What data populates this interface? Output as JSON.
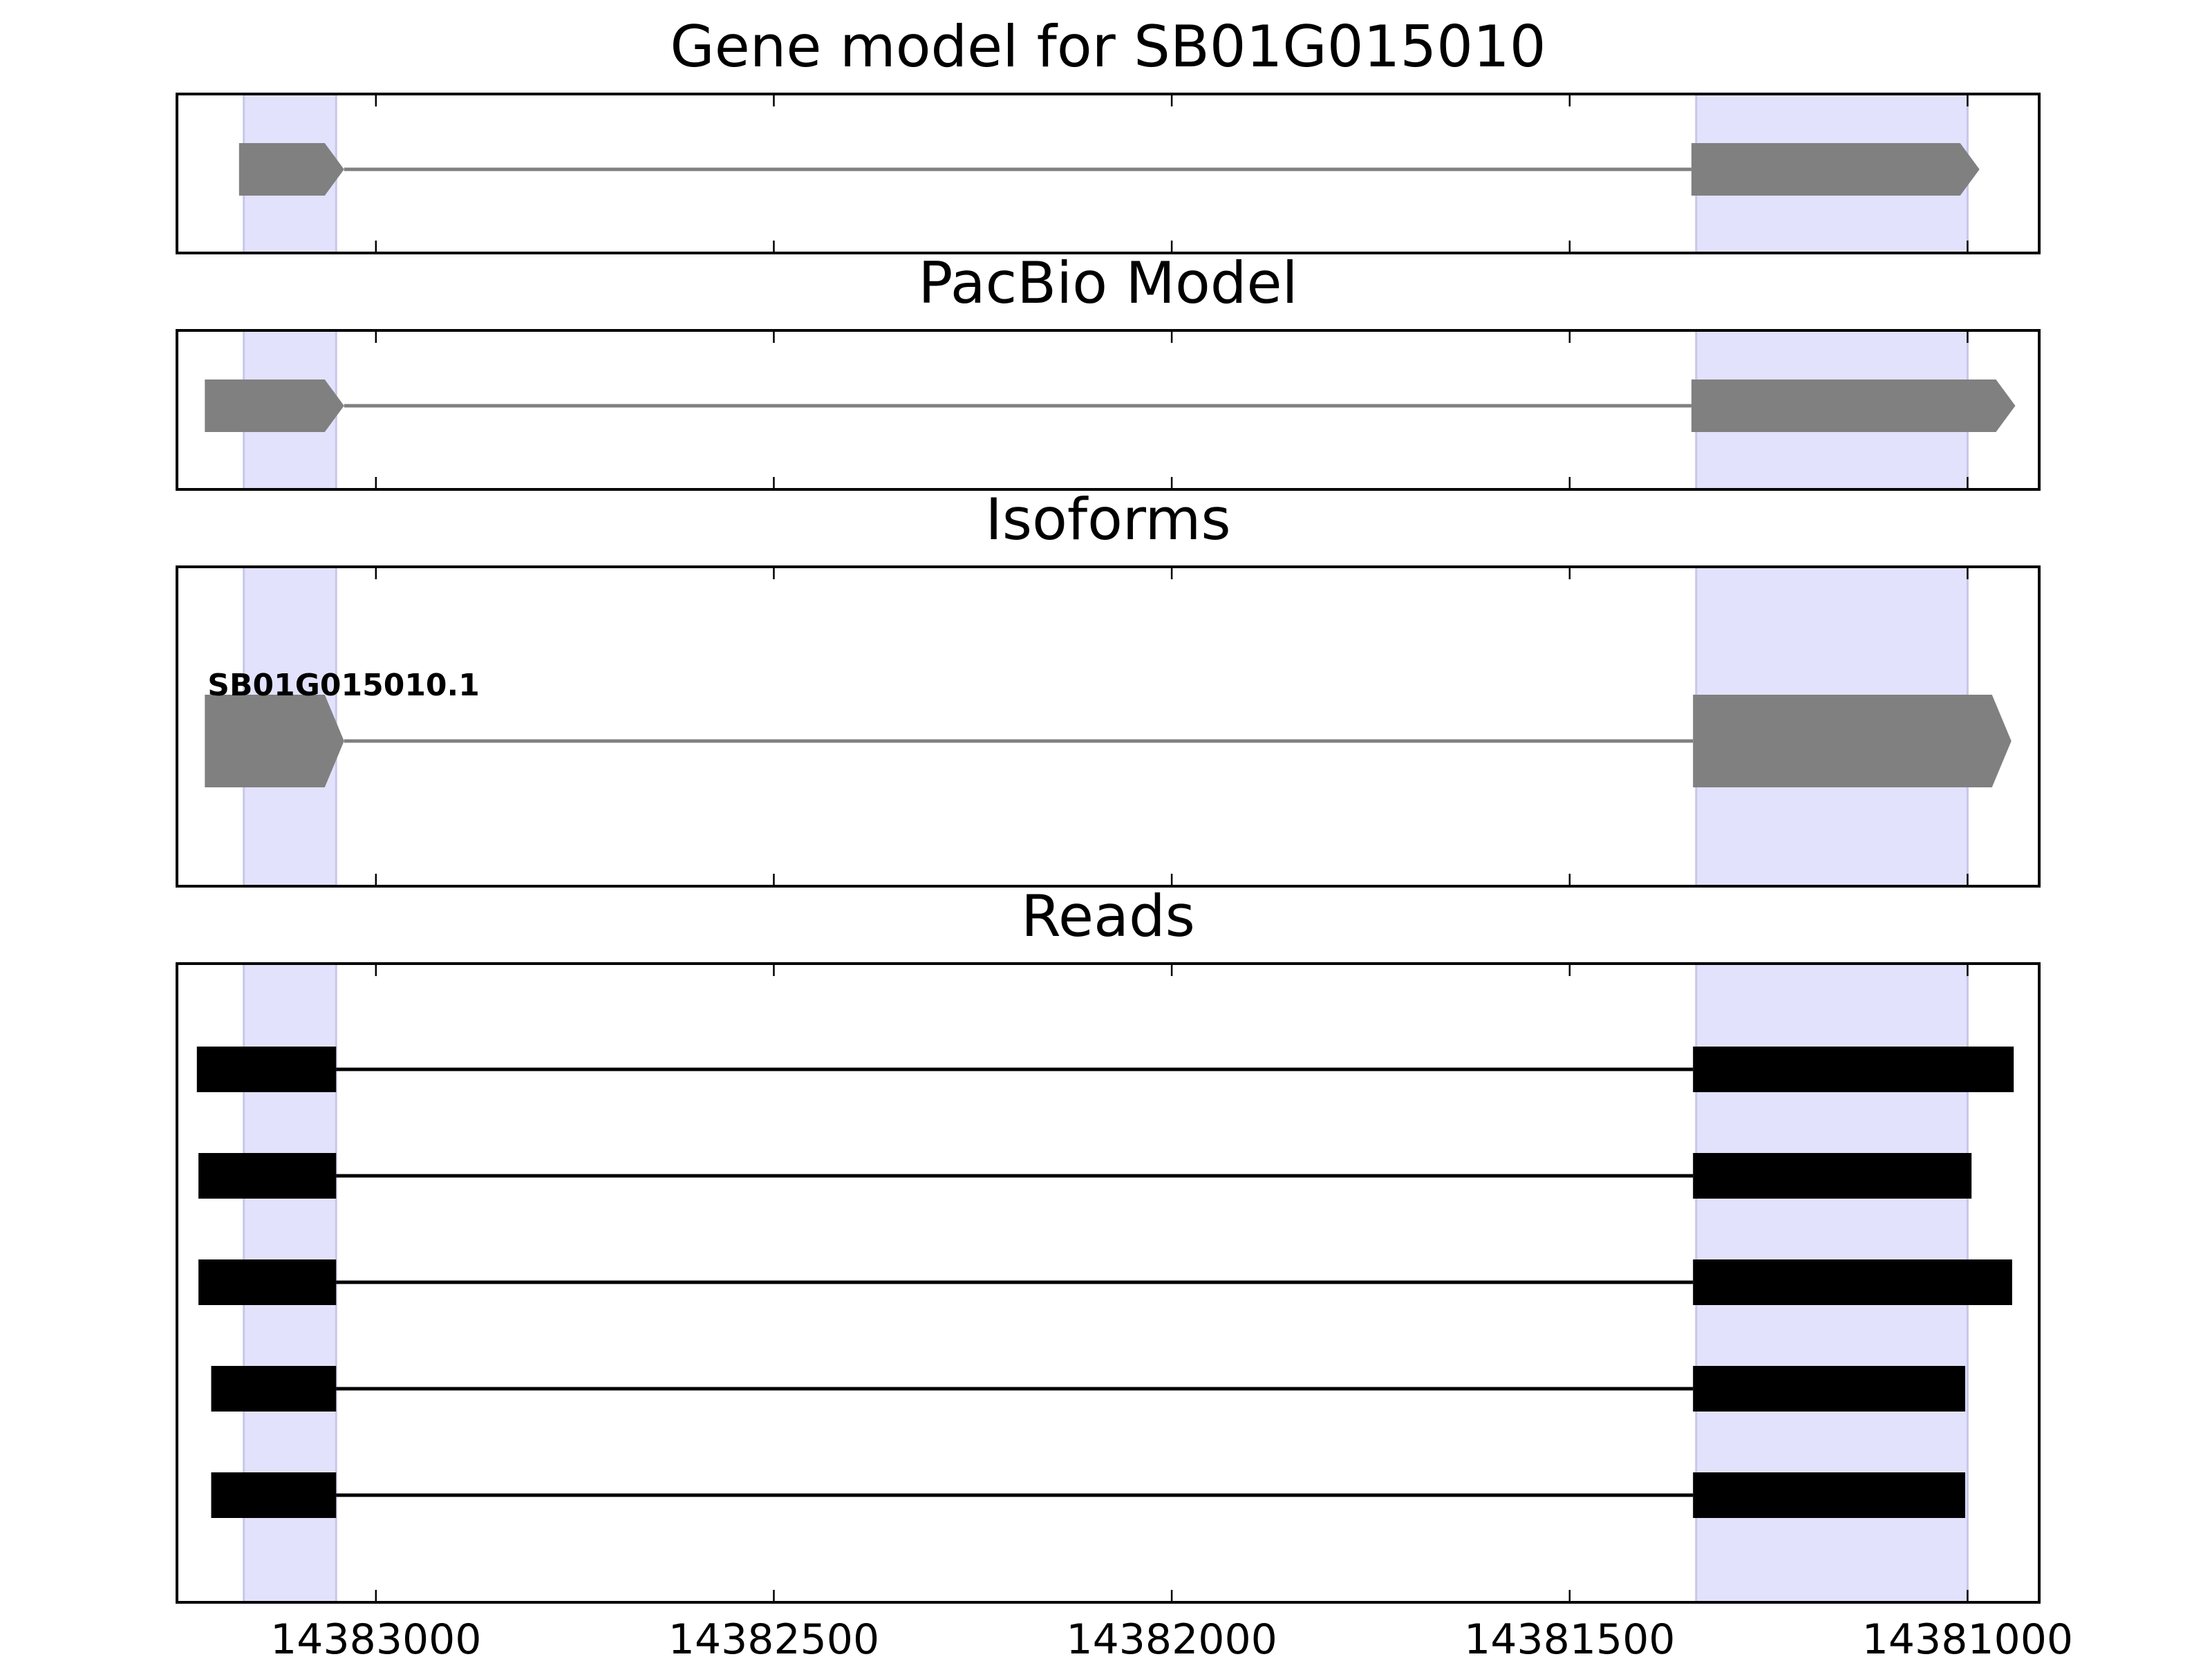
{
  "colors": {
    "exon_fill": "#808080",
    "intron_line": "#808080",
    "read_fill": "#000000",
    "highlight": "#e2e2fc",
    "highlight_edge": "#c7c7ea",
    "frame": "#000000"
  },
  "chart_data": {
    "type": "gene-model-track",
    "x_axis": {
      "range": [
        14383250,
        14380910
      ],
      "reversed": true,
      "ticks": [
        14383000,
        14382500,
        14382000,
        14381500,
        14381000
      ],
      "tick_labels": [
        "14383000",
        "14382500",
        "14382000",
        "14381500",
        "14381000"
      ]
    },
    "highlight_regions": [
      [
        14383166,
        14383050
      ],
      [
        14381341,
        14381000
      ]
    ],
    "panels": [
      {
        "title": "Gene model for SB01G015010",
        "kind": "model",
        "exons": [
          [
            14383172,
            14383040
          ],
          [
            14381347,
            14380985
          ]
        ],
        "strand": "-"
      },
      {
        "title": "PacBio Model",
        "kind": "model",
        "exons": [
          [
            14383215,
            14383040
          ],
          [
            14381347,
            14380940
          ]
        ],
        "strand": "-"
      },
      {
        "title": "Isoforms",
        "kind": "isoforms",
        "isoforms": [
          {
            "name": "SB01G015010.1",
            "exons": [
              [
                14383215,
                14383040
              ],
              [
                14381345,
                14380945
              ]
            ],
            "strand": "-"
          }
        ]
      },
      {
        "title": "Reads",
        "kind": "reads",
        "reads": [
          {
            "exons": [
              [
                14383225,
                14383050
              ],
              [
                14381345,
                14380942
              ]
            ]
          },
          {
            "exons": [
              [
                14383223,
                14383050
              ],
              [
                14381345,
                14380995
              ]
            ]
          },
          {
            "exons": [
              [
                14383223,
                14383050
              ],
              [
                14381345,
                14380944
              ]
            ]
          },
          {
            "exons": [
              [
                14383207,
                14383050
              ],
              [
                14381345,
                14381003
              ]
            ]
          },
          {
            "exons": [
              [
                14383207,
                14383050
              ],
              [
                14381345,
                14381003
              ]
            ]
          }
        ]
      }
    ]
  }
}
